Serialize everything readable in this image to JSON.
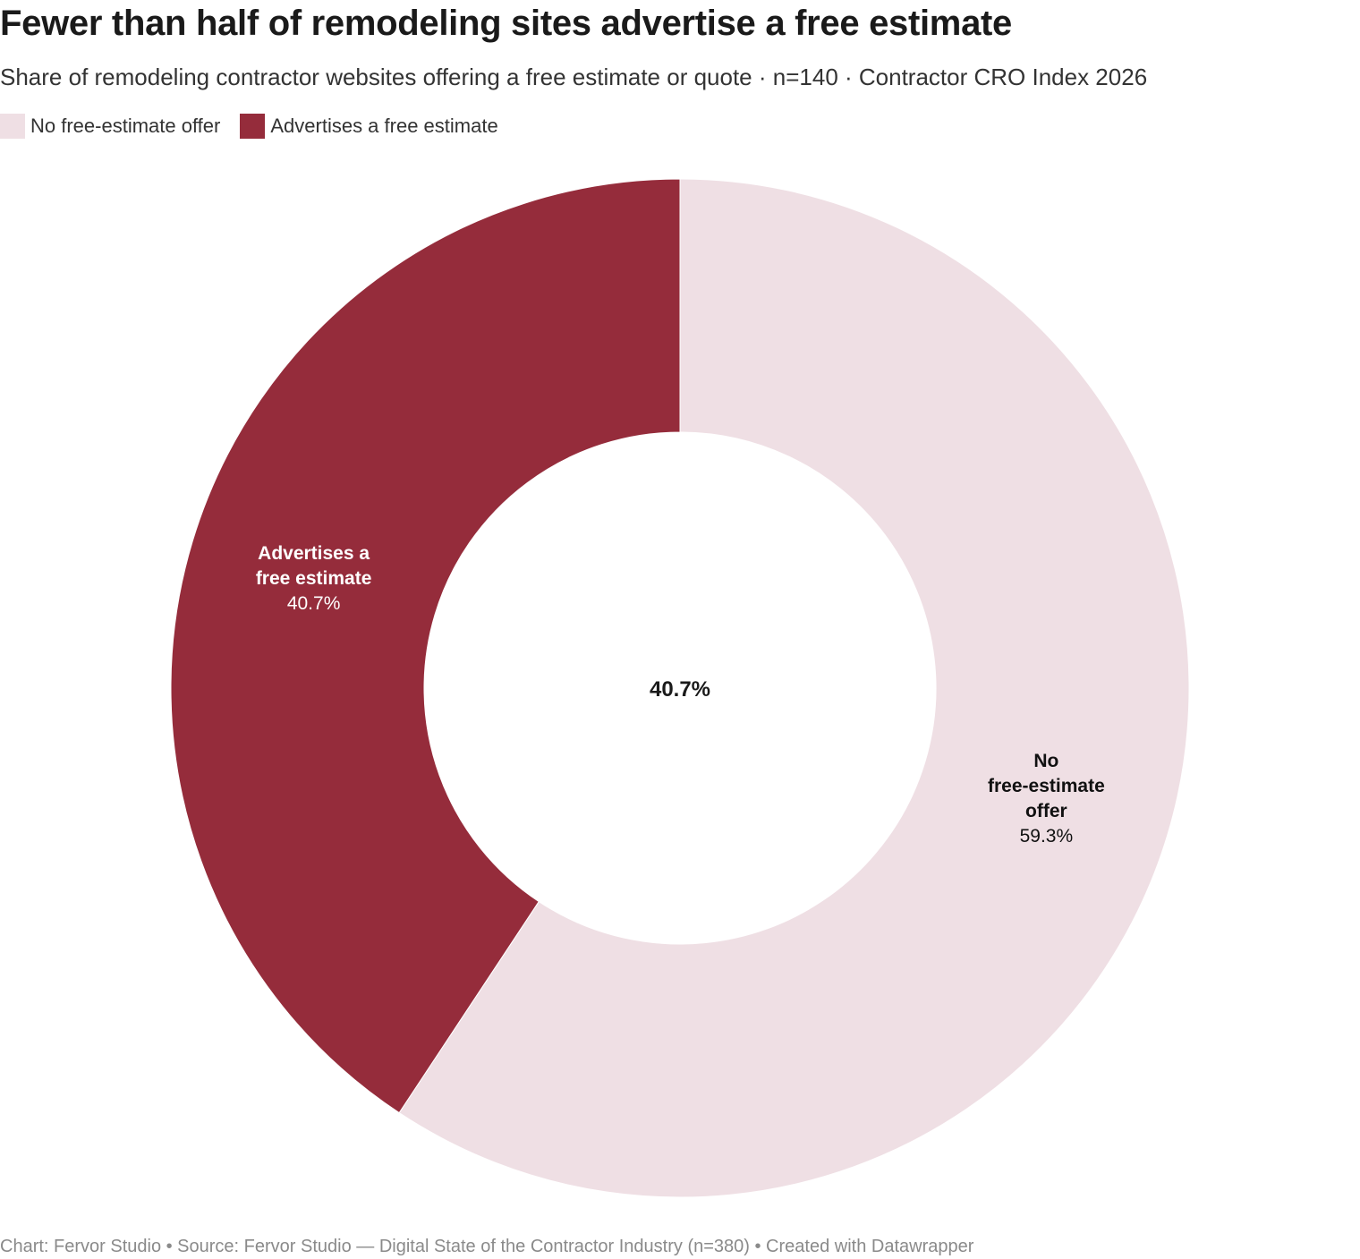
{
  "header": {
    "title": "Fewer than half of remodeling sites advertise a free estimate",
    "subtitle": "Share of remodeling contractor websites offering a free estimate or quote · n=140 · Contractor CRO Index 2026"
  },
  "legend": [
    {
      "label": "No free-estimate offer",
      "color": "#efdfe4"
    },
    {
      "label": "Advertises a free estimate",
      "color": "#952c3b"
    }
  ],
  "chart_data": {
    "type": "pie",
    "donut": true,
    "center_label": "40.7%",
    "slices": [
      {
        "category": "No free-estimate offer",
        "value": 59.3,
        "value_label": "59.3%",
        "label_lines": [
          "No",
          "free-estimate",
          "offer"
        ],
        "color": "#efdfe4",
        "label_color": "#111111"
      },
      {
        "category": "Advertises a free estimate",
        "value": 40.7,
        "value_label": "40.7%",
        "label_lines": [
          "Advertises a",
          "free estimate"
        ],
        "color": "#952c3b",
        "label_color": "#ffffff"
      }
    ]
  },
  "footer": {
    "credit": "Chart: Fervor Studio • Source: Fervor Studio — Digital State of the Contractor Industry (n=380) • Created with Datawrapper"
  }
}
